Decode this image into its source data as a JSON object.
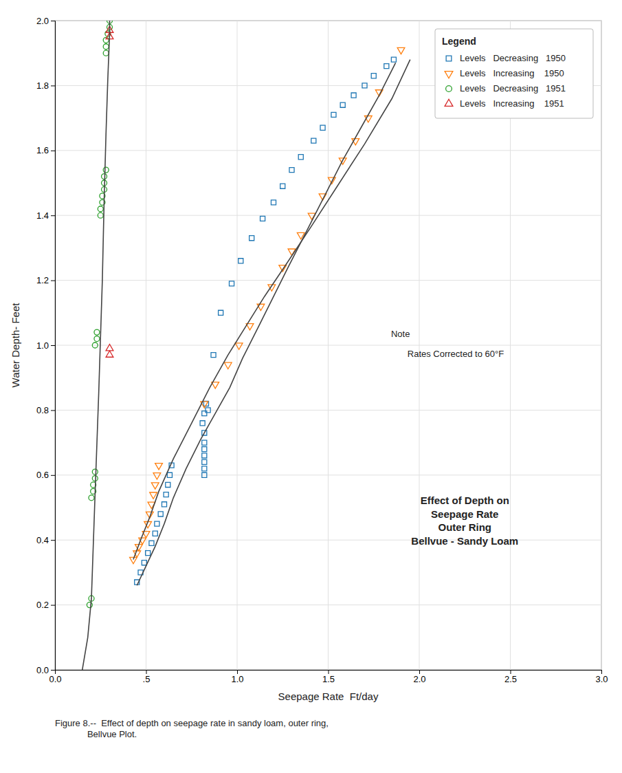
{
  "chart_data": {
    "type": "scatter",
    "title": "Effect of Depth on\n  Seepage Rate\n    Outer Ring\nBellvue - Sandy Loam",
    "x_label": "Seepage Rate  Ft/day",
    "y_label": "Water Depth- Feet",
    "annotations": [
      "Note",
      "Rates Corrected to 60°F",
      "Figure 8.--  Effect of depth on seepage rate in sandy loam, outer ring,\n             Bellvue Plot."
    ],
    "legend_title": "Legend",
    "legend": "upper right",
    "grid": true,
    "xlim": [
      0.0,
      3.0
    ],
    "ylim": [
      0.0,
      2.0
    ],
    "xticks": [
      {
        "value": 0.0,
        "label": "0.0"
      },
      {
        "value": 0.5,
        "label": ".5"
      },
      {
        "value": 1.0,
        "label": "1.0"
      },
      {
        "value": 1.5,
        "label": "1.5"
      },
      {
        "value": 2.0,
        "label": "2.0"
      },
      {
        "value": 2.5,
        "label": "2.5"
      },
      {
        "value": 3.0,
        "label": "3.0"
      }
    ],
    "yticks": [
      {
        "value": 0.0,
        "label": "0.0"
      },
      0.2,
      0.4,
      0.6,
      0.8,
      {
        "value": 1.0,
        "label": "1.0"
      },
      1.2,
      1.4,
      1.6,
      1.8,
      {
        "value": 2.0,
        "label": "2.0"
      }
    ],
    "series": [
      {
        "name": "Levels   Decreasing   1950",
        "type": "scatter",
        "marker": "square",
        "x": [
          0.83,
          0.82,
          0.81,
          0.82,
          0.82,
          0.82,
          0.82,
          0.82,
          0.82,
          0.82,
          0.84,
          0.87,
          0.91,
          0.97,
          1.02,
          1.08,
          1.14,
          1.2,
          1.25,
          1.3,
          1.35,
          1.42,
          1.47,
          1.53,
          1.58,
          1.64,
          1.7,
          1.75,
          1.82,
          1.86,
          0.64,
          0.63,
          0.62,
          0.61,
          0.6,
          0.58,
          0.56,
          0.55,
          0.53,
          0.51,
          0.49,
          0.47,
          0.45
        ],
        "values": [
          0.82,
          0.79,
          0.76,
          0.73,
          0.7,
          0.68,
          0.66,
          0.64,
          0.62,
          0.6,
          0.8,
          0.97,
          1.1,
          1.19,
          1.26,
          1.33,
          1.39,
          1.44,
          1.49,
          1.54,
          1.58,
          1.63,
          1.67,
          1.71,
          1.74,
          1.77,
          1.8,
          1.83,
          1.86,
          1.88,
          0.63,
          0.6,
          0.57,
          0.54,
          0.51,
          0.48,
          0.45,
          0.42,
          0.39,
          0.36,
          0.33,
          0.3,
          0.27
        ]
      },
      {
        "name": "Levels   Increasing    1950",
        "type": "scatter",
        "marker": "triangle-down",
        "x": [
          0.57,
          0.56,
          0.55,
          0.54,
          0.53,
          0.52,
          0.51,
          0.5,
          0.48,
          0.46,
          0.45,
          0.43,
          0.82,
          0.88,
          0.95,
          1.01,
          1.07,
          1.13,
          1.19,
          1.25,
          1.3,
          1.35,
          1.41,
          1.47,
          1.52,
          1.58,
          1.65,
          1.72,
          1.78,
          1.9
        ],
        "values": [
          0.63,
          0.6,
          0.57,
          0.54,
          0.51,
          0.48,
          0.45,
          0.42,
          0.4,
          0.38,
          0.36,
          0.34,
          0.82,
          0.88,
          0.94,
          1.0,
          1.06,
          1.12,
          1.18,
          1.24,
          1.29,
          1.34,
          1.4,
          1.46,
          1.51,
          1.57,
          1.63,
          1.7,
          1.78,
          1.91
        ]
      },
      {
        "name": "Levels   Decreasing   1951",
        "type": "scatter",
        "marker": "circle",
        "x": [
          0.19,
          0.2,
          0.2,
          0.21,
          0.21,
          0.22,
          0.22,
          0.22,
          0.23,
          0.23,
          0.25,
          0.25,
          0.26,
          0.26,
          0.27,
          0.27,
          0.27,
          0.28,
          0.28,
          0.28,
          0.28,
          0.29,
          0.3,
          0.3
        ],
        "values": [
          0.2,
          0.22,
          0.53,
          0.55,
          0.57,
          0.59,
          0.61,
          1.0,
          1.02,
          1.04,
          1.4,
          1.42,
          1.44,
          1.46,
          1.48,
          1.5,
          1.52,
          1.54,
          1.9,
          1.92,
          1.94,
          1.96,
          1.98,
          2.0
        ]
      },
      {
        "name": "Levels   Increasing    1951",
        "type": "scatter",
        "marker": "triangle-up",
        "x": [
          0.3,
          0.3,
          0.3,
          0.3
        ],
        "values": [
          0.97,
          0.99,
          1.95,
          1.97
        ]
      },
      {
        "type": "line",
        "line_style": "solid",
        "x": [
          0.15,
          0.18,
          0.2,
          0.22,
          0.24,
          0.26,
          0.27,
          0.28,
          0.29,
          0.3,
          0.3
        ],
        "values": [
          0.0,
          0.1,
          0.22,
          0.54,
          0.85,
          1.2,
          1.45,
          1.65,
          1.82,
          1.96,
          2.0
        ]
      },
      {
        "type": "line",
        "line_style": "solid",
        "x": [
          0.43,
          0.47,
          0.52,
          0.57,
          0.65,
          0.75,
          0.85,
          0.95,
          1.05,
          1.15,
          1.27,
          1.4,
          1.55,
          1.7,
          1.85,
          1.95
        ],
        "values": [
          0.34,
          0.4,
          0.47,
          0.55,
          0.65,
          0.76,
          0.87,
          0.97,
          1.06,
          1.15,
          1.25,
          1.36,
          1.49,
          1.62,
          1.76,
          1.88
        ]
      },
      {
        "type": "line",
        "line_style": "solid",
        "x": [
          0.45,
          0.5,
          0.55,
          0.6,
          0.65,
          0.72,
          0.8,
          0.88,
          0.96,
          1.03,
          1.12,
          1.2,
          1.28,
          1.38,
          1.48,
          1.58,
          1.68,
          1.78,
          1.87
        ],
        "values": [
          0.26,
          0.32,
          0.38,
          0.45,
          0.53,
          0.62,
          0.71,
          0.79,
          0.87,
          0.96,
          1.06,
          1.15,
          1.24,
          1.35,
          1.46,
          1.57,
          1.67,
          1.77,
          1.87
        ]
      }
    ]
  }
}
